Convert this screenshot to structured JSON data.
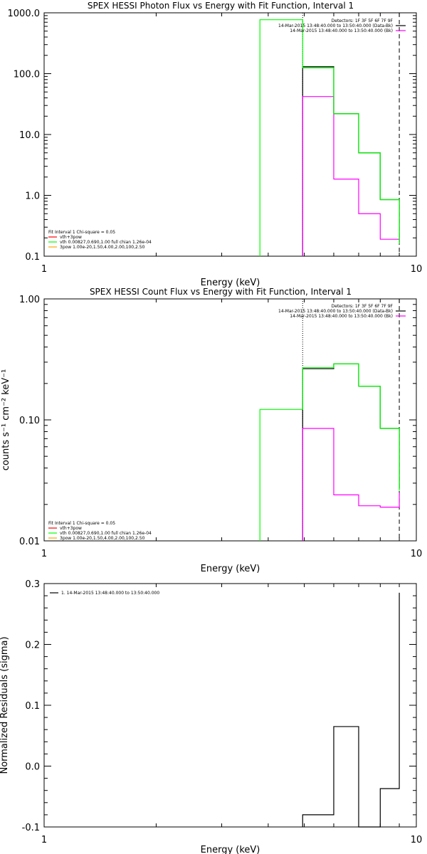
{
  "colors": {
    "fg": "#000000",
    "bg": "#ffffff",
    "magenta": "#ff00ff",
    "green": "#00ff00",
    "red": "#ff0000",
    "orange": "#ffa500"
  },
  "chart_data": [
    {
      "id": "photon",
      "type": "line",
      "step": true,
      "title": "SPEX HESSI Photon Flux vs Energy with Fit Function, Interval 1",
      "xlabel": "Energy (keV)",
      "ylabel": "",
      "xscale": "log",
      "yscale": "log",
      "xlim": [
        1,
        10
      ],
      "ylim": [
        0.1,
        1000
      ],
      "xticks": [
        {
          "v": 1,
          "label": "1"
        },
        {
          "v": 10,
          "label": "10"
        }
      ],
      "yticks": [
        {
          "v": 0.1,
          "label": "0.1"
        },
        {
          "v": 1,
          "label": "1.0"
        },
        {
          "v": 10,
          "label": "10.0"
        },
        {
          "v": 100,
          "label": "100.0"
        },
        {
          "v": 1000,
          "label": "1000.0"
        }
      ],
      "vlines": [
        {
          "x": 4.95,
          "style": "dotted"
        },
        {
          "x": 9.0,
          "style": "dashed"
        }
      ],
      "legend_tr": [
        "Detectors: 1F 3F 5F 6F 7F 9F",
        "14-Mar-2015 13:48:40.000 to 13:50:40.000 (Data-Bk)",
        "14-Mar-2015 13:48:40.000 to 13:50:40.000 (Bk)"
      ],
      "legend_tr_colors": [
        "#000000",
        "#000000",
        "#ff00ff"
      ],
      "legend_bl": [
        "Fit Interval 1   Chi-square = 0.05",
        "vth+3pow",
        "vth 0.00827,0.690,1.00  full chian 1.26e-04",
        "3pow 1.00e-20,1.50,4.00,2.00,100,2.50"
      ],
      "legend_bl_colors": [
        "#000000",
        "#ff0000",
        "#00ff00",
        "#ffa500"
      ],
      "series": [
        {
          "name": "Data-Bk",
          "color": "#000000",
          "edges": [
            4.95,
            6.0,
            7.0,
            8.0,
            9.0
          ],
          "values": [
            130,
            22,
            5,
            0.85,
            0.17
          ]
        },
        {
          "name": "Bk",
          "color": "#ff00ff",
          "edges": [
            4.95,
            6.0,
            7.0,
            8.0,
            9.0
          ],
          "values": [
            42,
            1.85,
            0.5,
            0.19,
            0.16
          ]
        },
        {
          "name": "vth",
          "color": "#00ff00",
          "edges": [
            3.8,
            4.95,
            6.0,
            7.0,
            8.0,
            9.0
          ],
          "values": [
            770,
            125,
            22,
            5,
            0.85,
            0.16
          ]
        }
      ]
    },
    {
      "id": "count",
      "type": "line",
      "step": true,
      "title": "SPEX HESSI Count Flux vs Energy with Fit Function, Interval 1",
      "xlabel": "Energy (keV)",
      "ylabel": "counts s⁻¹ cm⁻² keV⁻¹",
      "xscale": "log",
      "yscale": "log",
      "xlim": [
        1,
        10
      ],
      "ylim": [
        0.01,
        1
      ],
      "xticks": [
        {
          "v": 1,
          "label": "1"
        },
        {
          "v": 10,
          "label": "10"
        }
      ],
      "yticks": [
        {
          "v": 0.01,
          "label": "0.01"
        },
        {
          "v": 0.1,
          "label": "0.10"
        },
        {
          "v": 1,
          "label": "1.00"
        }
      ],
      "vlines": [
        {
          "x": 4.95,
          "style": "dotted"
        },
        {
          "x": 9.0,
          "style": "dashed"
        }
      ],
      "legend_tr": [
        "Detectors: 1F 3F 5F 6F 7F 9F",
        "14-Mar-2015 13:48:40.000 to 13:50:40.000 (Data-Bk)",
        "14-Mar-2015 13:48:40.000 to 13:50:40.000 (Bk)"
      ],
      "legend_tr_colors": [
        "#000000",
        "#000000",
        "#ff00ff"
      ],
      "legend_bl": [
        "Fit Interval 1   Chi-square = 0.05",
        "vth+3pow",
        "vth 0.00827,0.690,1.00  full chian 1.26e-04",
        "3pow 1.00e-20,1.50,4.00,2.00,100,2.50"
      ],
      "legend_bl_colors": [
        "#000000",
        "#ff0000",
        "#00ff00",
        "#ffa500"
      ],
      "series": [
        {
          "name": "Data-Bk",
          "color": "#000000",
          "edges": [
            4.95,
            6.0,
            7.0,
            8.0,
            9.0
          ],
          "values": [
            0.265,
            0.29,
            0.19,
            0.085,
            0.027
          ]
        },
        {
          "name": "Bk",
          "color": "#ff00ff",
          "edges": [
            4.95,
            6.0,
            7.0,
            8.0,
            9.0
          ],
          "values": [
            0.085,
            0.024,
            0.0195,
            0.019,
            0.025
          ]
        },
        {
          "name": "vth",
          "color": "#00ff00",
          "edges": [
            3.8,
            4.95,
            6.0,
            7.0,
            8.0,
            9.0
          ],
          "values": [
            0.122,
            0.27,
            0.29,
            0.19,
            0.085,
            0.026
          ]
        }
      ]
    },
    {
      "id": "resid",
      "type": "line",
      "step": true,
      "title": "",
      "xlabel": "Energy (keV)",
      "ylabel": "Normalized Residuals (sigma)",
      "xscale": "log",
      "yscale": "linear",
      "xlim": [
        1,
        10
      ],
      "ylim": [
        -0.1,
        0.3
      ],
      "xticks": [
        {
          "v": 1,
          "label": "1"
        },
        {
          "v": 10,
          "label": "10"
        }
      ],
      "yticks": [
        {
          "v": -0.1,
          "label": "-0.1"
        },
        {
          "v": 0.0,
          "label": "0.0"
        },
        {
          "v": 0.1,
          "label": "0.1"
        },
        {
          "v": 0.2,
          "label": "0.2"
        },
        {
          "v": 0.3,
          "label": "0.3"
        }
      ],
      "vlines": [],
      "legend_tl": [
        "1. 14-Mar-2015 13:48:40.000 to 13:50:40.000"
      ],
      "legend_tl_colors": [
        "#000000"
      ],
      "series": [
        {
          "name": "1",
          "color": "#000000",
          "edges": [
            4.95,
            6.0,
            7.0,
            8.0,
            9.0
          ],
          "values": [
            -0.08,
            0.065,
            -0.1,
            -0.037,
            0.285
          ]
        }
      ]
    }
  ]
}
